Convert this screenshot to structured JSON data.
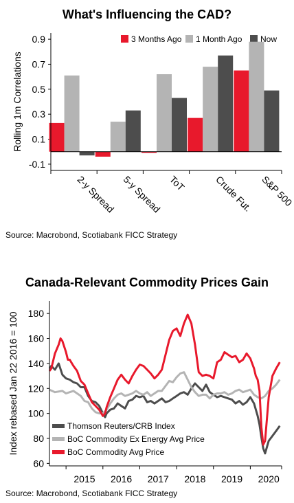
{
  "chart_data": [
    {
      "type": "bar",
      "title": "What's Influencing the CAD?",
      "ylabel": "Rolling 1m Correlations",
      "source": "Source: Macrobond, Scotiabank FICC Strategy",
      "categories": [
        "2-y Spread",
        "5-y Spread",
        "ToT",
        "Crude Fut.",
        "S&P 500"
      ],
      "yticks": [
        "-0.1",
        "0.1",
        "0.3",
        "0.5",
        "0.7",
        "0.9"
      ],
      "ylim": [
        -0.15,
        0.95
      ],
      "legend_position": "top-right",
      "series": [
        {
          "name": "3 Months Ago",
          "color": "#e8192c",
          "values": [
            0.23,
            -0.04,
            -0.01,
            0.27,
            0.65
          ]
        },
        {
          "name": "1 Month Ago",
          "color": "#b4b4b4",
          "values": [
            0.61,
            0.24,
            0.62,
            0.68,
            0.88
          ]
        },
        {
          "name": "Now",
          "color": "#4d4d4d",
          "values": [
            -0.03,
            0.33,
            0.43,
            0.77,
            0.49
          ]
        }
      ]
    },
    {
      "type": "line",
      "title": "Canada-Relevant Commodity Prices Gain",
      "ylabel": "Index rebased Jan 22 2016 = 100",
      "source": "Source: Macrobond, Scotiabank FICC Strategy",
      "yticks": [
        "60",
        "80",
        "100",
        "120",
        "140",
        "160",
        "180"
      ],
      "ylim": [
        58,
        190
      ],
      "xticks": [
        "2015",
        "2016",
        "2017",
        "2018",
        "2019",
        "2020"
      ],
      "xlim": [
        2014.55,
        2020.85
      ],
      "legend_position": "bottom-left",
      "series": [
        {
          "name": "Thomson Reuters/CRB Index",
          "color": "#4d4d4d",
          "x": [
            2014.55,
            2014.6,
            2014.7,
            2014.8,
            2014.9,
            2015.0,
            2015.1,
            2015.2,
            2015.3,
            2015.4,
            2015.5,
            2015.6,
            2015.7,
            2015.8,
            2015.9,
            2016.0,
            2016.06,
            2016.1,
            2016.2,
            2016.3,
            2016.4,
            2016.5,
            2016.6,
            2016.7,
            2016.8,
            2016.9,
            2017.0,
            2017.1,
            2017.2,
            2017.3,
            2017.4,
            2017.5,
            2017.6,
            2017.7,
            2017.8,
            2017.9,
            2018.0,
            2018.1,
            2018.2,
            2018.3,
            2018.4,
            2018.5,
            2018.6,
            2018.7,
            2018.8,
            2018.9,
            2019.0,
            2019.1,
            2019.2,
            2019.3,
            2019.4,
            2019.5,
            2019.6,
            2019.7,
            2019.8,
            2019.9,
            2020.0,
            2020.1,
            2020.2,
            2020.25,
            2020.3,
            2020.35,
            2020.4,
            2020.5,
            2020.6,
            2020.7,
            2020.8
          ],
          "y": [
            136,
            138,
            135,
            140,
            131,
            128,
            127,
            125,
            124,
            121,
            121,
            114,
            110,
            109,
            106,
            100,
            97,
            100,
            103,
            104,
            108,
            106,
            104,
            110,
            111,
            114,
            113,
            114,
            109,
            110,
            108,
            110,
            112,
            109,
            110,
            112,
            114,
            116,
            117,
            115,
            120,
            124,
            121,
            118,
            123,
            117,
            115,
            113,
            114,
            113,
            112,
            111,
            108,
            110,
            107,
            109,
            113,
            108,
            98,
            91,
            81,
            72,
            68,
            78,
            82,
            86,
            90
          ]
        },
        {
          "name": "BoC Commodity Ex Energy Avg Price",
          "color": "#b4b4b4",
          "x": [
            2014.55,
            2014.7,
            2014.9,
            2015.0,
            2015.1,
            2015.2,
            2015.3,
            2015.4,
            2015.5,
            2015.6,
            2015.7,
            2015.8,
            2015.9,
            2016.0,
            2016.1,
            2016.2,
            2016.3,
            2016.4,
            2016.5,
            2016.6,
            2016.7,
            2016.8,
            2016.9,
            2017.0,
            2017.1,
            2017.2,
            2017.3,
            2017.4,
            2017.5,
            2017.6,
            2017.7,
            2017.8,
            2017.9,
            2018.0,
            2018.1,
            2018.2,
            2018.3,
            2018.4,
            2018.5,
            2018.6,
            2018.7,
            2018.8,
            2018.9,
            2019.0,
            2019.1,
            2019.2,
            2019.3,
            2019.4,
            2019.5,
            2019.6,
            2019.7,
            2019.8,
            2019.9,
            2020.0,
            2020.1,
            2020.2,
            2020.3,
            2020.4,
            2020.5,
            2020.6,
            2020.7,
            2020.8
          ],
          "y": [
            119,
            117,
            118,
            116,
            117,
            118,
            116,
            114,
            110,
            109,
            104,
            101,
            100,
            100,
            103,
            108,
            112,
            115,
            116,
            114,
            115,
            116,
            118,
            116,
            115,
            117,
            114,
            116,
            118,
            118,
            122,
            126,
            125,
            129,
            132,
            133,
            127,
            121,
            117,
            114,
            115,
            115,
            112,
            115,
            116,
            116,
            117,
            115,
            116,
            118,
            119,
            117,
            118,
            119,
            115,
            113,
            112,
            114,
            118,
            120,
            123,
            127
          ]
        },
        {
          "name": "BoC Commodity Avg Price",
          "color": "#e8192c",
          "x": [
            2014.55,
            2014.6,
            2014.7,
            2014.8,
            2014.85,
            2014.9,
            2015.0,
            2015.05,
            2015.1,
            2015.2,
            2015.3,
            2015.4,
            2015.5,
            2015.6,
            2015.7,
            2015.8,
            2015.9,
            2016.0,
            2016.06,
            2016.1,
            2016.2,
            2016.3,
            2016.4,
            2016.5,
            2016.6,
            2016.7,
            2016.8,
            2016.9,
            2017.0,
            2017.1,
            2017.2,
            2017.3,
            2017.4,
            2017.5,
            2017.6,
            2017.7,
            2017.8,
            2017.9,
            2018.0,
            2018.05,
            2018.1,
            2018.2,
            2018.3,
            2018.4,
            2018.5,
            2018.6,
            2018.7,
            2018.8,
            2018.9,
            2019.0,
            2019.1,
            2019.2,
            2019.3,
            2019.4,
            2019.5,
            2019.6,
            2019.7,
            2019.8,
            2019.9,
            2020.0,
            2020.1,
            2020.15,
            2020.2,
            2020.25,
            2020.3,
            2020.35,
            2020.4,
            2020.5,
            2020.6,
            2020.7,
            2020.8
          ],
          "y": [
            134,
            136,
            148,
            155,
            160,
            158,
            149,
            143,
            143,
            138,
            134,
            126,
            123,
            116,
            109,
            106,
            103,
            98,
            100,
            105,
            113,
            120,
            127,
            131,
            127,
            124,
            130,
            135,
            139,
            138,
            135,
            132,
            128,
            131,
            135,
            147,
            159,
            166,
            168,
            165,
            162,
            172,
            179,
            172,
            155,
            133,
            130,
            131,
            130,
            128,
            141,
            143,
            149,
            147,
            145,
            146,
            141,
            143,
            148,
            144,
            136,
            130,
            127,
            118,
            89,
            75,
            78,
            113,
            130,
            136,
            141
          ]
        }
      ]
    }
  ]
}
